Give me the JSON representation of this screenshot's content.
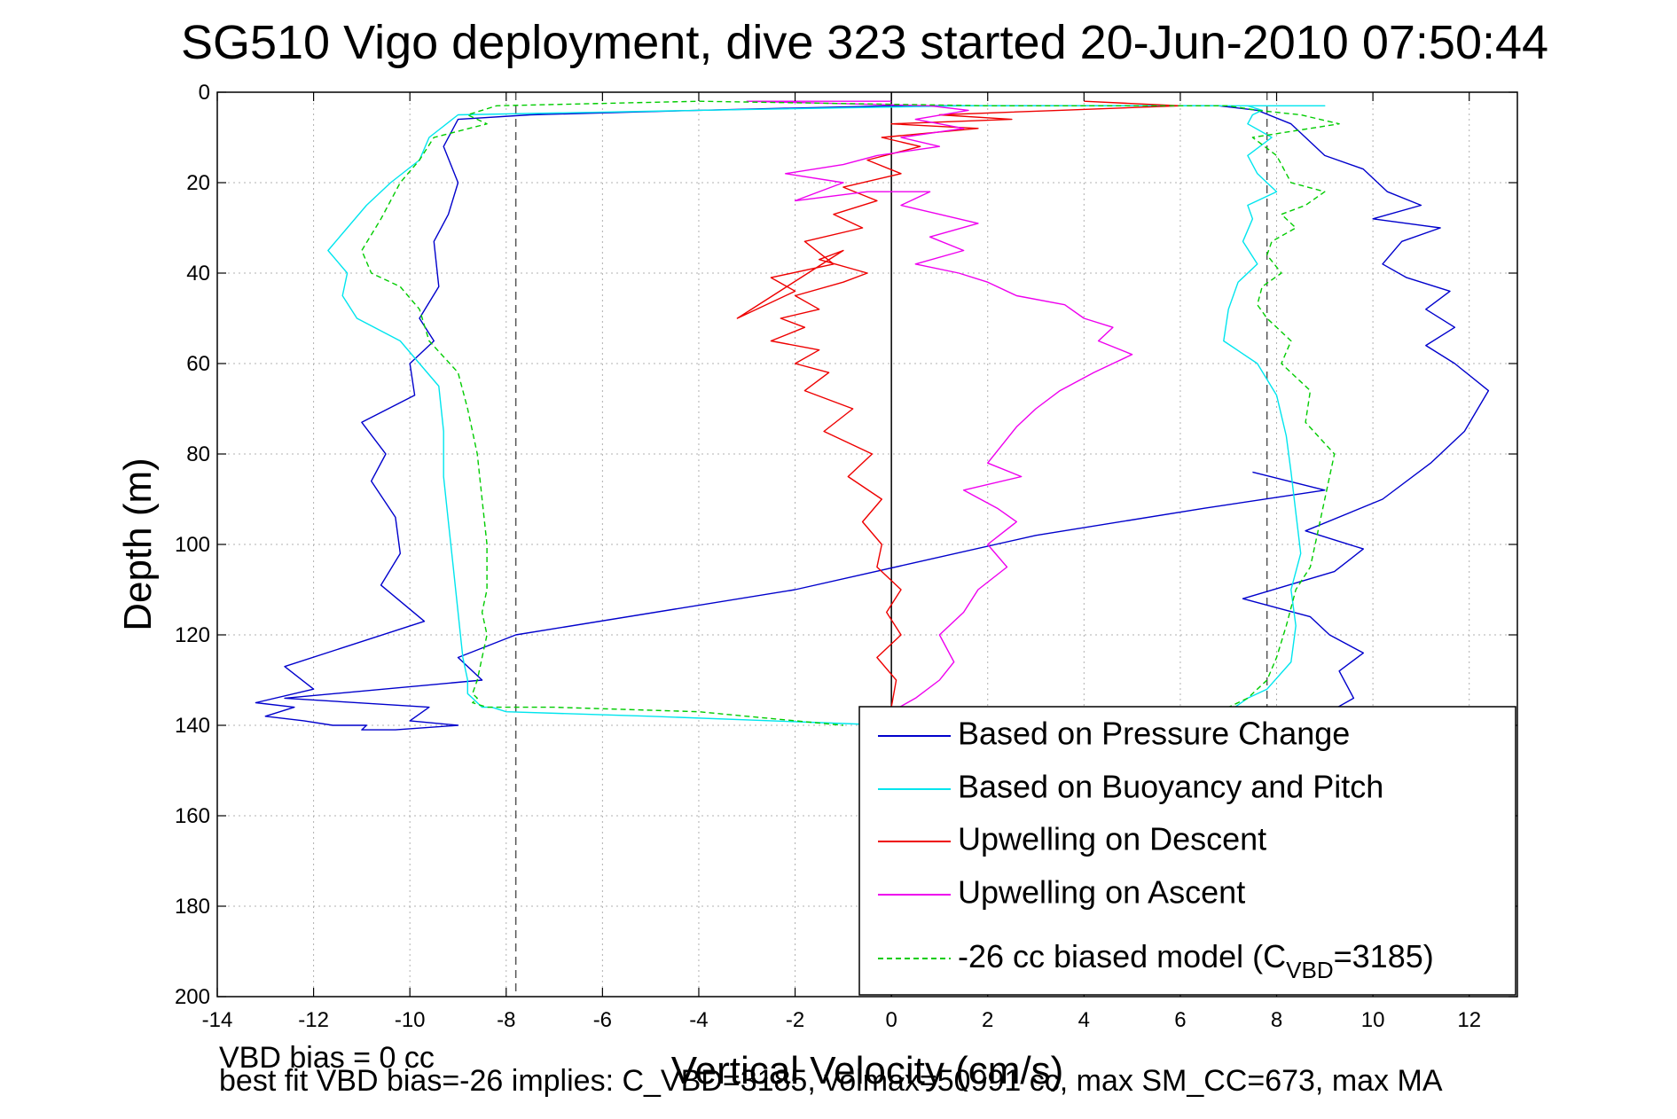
{
  "chart_data": {
    "type": "line",
    "title": "SG510 Vigo deployment, dive 323 started 20-Jun-2010 07:50:44",
    "xlabel": "Vertical Velocity (cm/s)",
    "ylabel": "Depth (m)",
    "xlim": [
      -14,
      13
    ],
    "ylim": [
      0,
      200
    ],
    "y_reversed": true,
    "xticks": [
      -14,
      -12,
      -10,
      -8,
      -6,
      -4,
      -2,
      0,
      2,
      4,
      6,
      8,
      10,
      12
    ],
    "yticks": [
      0,
      20,
      40,
      60,
      80,
      100,
      120,
      140,
      160,
      180,
      200
    ],
    "grid": true,
    "legend_position": "bottom-right",
    "reference_lines": [
      {
        "x": -7.8,
        "style": "dashed",
        "color": "#555555"
      },
      {
        "x": 0,
        "style": "solid",
        "color": "#000000"
      },
      {
        "x": 7.8,
        "style": "dashed",
        "color": "#555555"
      }
    ],
    "series": [
      {
        "name": "Based on Pressure Change",
        "color": "#0000cc",
        "style": "solid",
        "x": [
          7.5,
          9.1,
          9.6,
          9.3,
          9.8,
          9.1,
          8.7,
          7.3,
          9.2,
          9.8,
          8.6,
          10.2,
          11.2,
          11.9,
          12.4,
          11.7,
          11.1,
          11.7,
          11.1,
          11.6,
          10.7,
          10.2,
          10.6,
          11.4,
          10.0,
          11.0,
          10.3,
          9.8,
          9.0,
          8.6,
          8.3,
          7.6,
          6.8,
          6.6,
          3.0,
          0.0,
          -4.0,
          -7.5,
          -9.0,
          -9.3,
          -9.0,
          -9.2,
          -9.5,
          -9.4,
          -9.8,
          -9.5,
          -10.0,
          -9.9,
          -11.0,
          -10.5,
          -10.8,
          -10.3,
          -10.2,
          -10.6,
          -9.7,
          -12.6,
          -12.0,
          -13.2,
          -12.4,
          -13.0,
          -12.2,
          -11.6,
          -10.9,
          -11.0,
          -10.3,
          -9.0,
          -10.0,
          -9.6,
          -12.6,
          -8.5,
          -9.0,
          -7.8,
          -2.0,
          3.0,
          6.5,
          9.0,
          7.5
        ],
        "y": [
          140,
          137,
          134,
          128,
          124,
          120,
          116,
          112,
          106,
          101,
          97,
          90,
          82,
          75,
          66,
          60,
          56,
          52,
          48,
          44,
          41,
          38,
          33,
          30,
          28,
          25,
          22,
          17,
          14,
          10,
          7,
          4,
          3,
          3,
          3,
          3,
          4,
          5,
          6,
          12,
          20,
          27,
          33,
          43,
          50,
          55,
          60,
          67,
          73,
          80,
          86,
          94,
          102,
          109,
          117,
          127,
          132,
          135,
          136,
          138,
          139,
          140,
          140,
          141,
          141,
          140,
          139,
          136,
          134,
          130,
          125,
          120,
          110,
          98,
          92,
          88,
          84
        ]
      },
      {
        "name": "Based on Buoyancy and Pitch",
        "color": "#00e5ee",
        "style": "solid",
        "x": [
          7.0,
          7.4,
          7.8,
          8.3,
          8.4,
          8.3,
          8.5,
          8.4,
          8.3,
          8.2,
          8.0,
          7.6,
          6.9,
          7.0,
          7.2,
          7.6,
          7.3,
          7.5,
          7.4,
          8.0,
          7.6,
          7.4,
          7.9,
          7.4,
          7.5,
          7.7,
          7.4,
          7.6,
          7.4,
          7.9,
          8.4,
          9.0,
          9.0,
          1.5,
          -4.0,
          -9.0,
          -9.6,
          -9.8,
          -10.4,
          -10.9,
          -11.3,
          -11.7,
          -11.3,
          -11.4,
          -11.1,
          -10.2,
          -9.8,
          -9.4,
          -9.3,
          -9.3,
          -9.2,
          -9.1,
          -9.0,
          -8.9,
          -8.8,
          -8.8,
          -8.7,
          -8.6,
          -8.6,
          -8.5,
          -8.5,
          -8.4,
          -8.3,
          -8.0,
          -5.0,
          0.0,
          2.0
        ],
        "y": [
          137,
          134,
          132,
          126,
          118,
          110,
          102,
          93,
          84,
          76,
          67,
          60,
          55,
          48,
          42,
          38,
          33,
          28,
          25,
          22,
          18,
          14,
          10,
          7,
          5,
          4,
          3,
          3,
          3,
          3,
          3,
          3,
          3,
          3,
          4,
          5,
          10,
          15,
          20,
          25,
          30,
          35,
          40,
          45,
          50,
          55,
          60,
          65,
          75,
          85,
          95,
          105,
          115,
          125,
          130,
          133,
          134,
          135,
          135,
          136,
          136,
          136,
          136,
          137,
          138,
          140,
          141
        ]
      },
      {
        "name": "Upwelling on Descent",
        "color": "#ee0000",
        "style": "solid",
        "x": [
          0.0,
          0.1,
          -0.3,
          0.2,
          -0.1,
          0.2,
          -0.3,
          -0.2,
          -0.6,
          -0.2,
          -0.9,
          -0.4,
          -1.4,
          -0.8,
          -1.8,
          -1.3,
          -2.0,
          -1.5,
          -2.5,
          -1.8,
          -2.3,
          -1.5,
          -2.0,
          -1.0,
          -0.5,
          -1.5,
          -1.0,
          -3.2,
          -2.0,
          -2.5,
          -1.2,
          -1.8,
          -0.6,
          -1.2,
          -0.3,
          -1.0,
          0.2,
          -0.5,
          0.6,
          -0.2,
          1.8,
          0.0,
          2.5,
          1.0,
          3.5,
          6.0,
          4.0
        ],
        "y": [
          136,
          130,
          125,
          120,
          115,
          110,
          105,
          100,
          95,
          90,
          85,
          80,
          75,
          70,
          66,
          62,
          60,
          57,
          55,
          52,
          50,
          48,
          45,
          42,
          40,
          37,
          35,
          50,
          44,
          41,
          38,
          33,
          30,
          27,
          24,
          21,
          18,
          15,
          12,
          10,
          8,
          7,
          6,
          5,
          4,
          3,
          2
        ]
      },
      {
        "name": "Upwelling on Ascent",
        "color": "#ee00ee",
        "style": "solid",
        "x": [
          0.0,
          0.5,
          1.0,
          1.3,
          1.0,
          1.5,
          1.8,
          2.4,
          2.0,
          2.6,
          2.2,
          1.5,
          2.7,
          2.0,
          2.3,
          2.6,
          3.0,
          3.5,
          4.2,
          4.6,
          5.0,
          4.3,
          4.6,
          4.0,
          3.6,
          2.6,
          2.0,
          1.4,
          0.5,
          1.5,
          0.8,
          1.8,
          1.0,
          0.2,
          0.8,
          -0.5,
          -2.0,
          -1.0,
          -2.2,
          -1.0,
          -0.3,
          1.0,
          0.2,
          1.5,
          0.5,
          1.6,
          0.8,
          -3.0,
          0.0
        ],
        "y": [
          137,
          134,
          130,
          126,
          120,
          115,
          110,
          105,
          100,
          95,
          92,
          88,
          85,
          82,
          78,
          74,
          70,
          66,
          62,
          60,
          58,
          55,
          52,
          50,
          47,
          45,
          42,
          40,
          38,
          35,
          32,
          29,
          27,
          25,
          22,
          22,
          24,
          20,
          18,
          16,
          14,
          12,
          10,
          8,
          6,
          4,
          3,
          2,
          2
        ]
      },
      {
        "name": "-26 cc biased model (C_VBD=3185)",
        "color": "#00cc00",
        "style": "dashed",
        "x": [
          6.8,
          7.4,
          7.8,
          8.0,
          8.2,
          8.4,
          8.7,
          8.8,
          9.0,
          9.2,
          8.6,
          8.7,
          8.1,
          8.3,
          7.8,
          7.6,
          7.7,
          8.1,
          7.8,
          7.9,
          8.4,
          8.1,
          8.6,
          9.0,
          8.3,
          8.0,
          7.5,
          9.3,
          8.5,
          7.6,
          7.0,
          2.0,
          -4.0,
          -8.2,
          -8.8,
          -8.4,
          -9.5,
          -9.8,
          -10.2,
          -10.6,
          -11.0,
          -10.8,
          -10.2,
          -9.8,
          -9.6,
          -9.0,
          -8.8,
          -8.6,
          -8.5,
          -8.4,
          -8.4,
          -8.5,
          -8.4,
          -8.5,
          -8.6,
          -8.7,
          -8.6,
          -8.7,
          -8.4,
          -7.0,
          -4.0,
          -1.0
        ],
        "y": [
          137,
          134,
          130,
          125,
          118,
          110,
          105,
          100,
          90,
          80,
          73,
          66,
          60,
          55,
          50,
          47,
          43,
          40,
          36,
          33,
          30,
          27,
          25,
          22,
          20,
          14,
          10,
          7,
          5,
          4,
          3,
          3,
          2,
          3,
          5,
          7,
          10,
          15,
          20,
          28,
          35,
          40,
          43,
          48,
          55,
          62,
          70,
          80,
          90,
          100,
          110,
          115,
          120,
          125,
          130,
          133,
          134,
          135,
          136,
          136,
          137,
          140
        ]
      }
    ]
  },
  "legend": {
    "entries": [
      {
        "label": "Based on Pressure Change",
        "color": "#0000cc",
        "style": "solid"
      },
      {
        "label": "Based on Buoyancy and Pitch",
        "color": "#00e5ee",
        "style": "solid"
      },
      {
        "label": "Upwelling on Descent",
        "color": "#ee0000",
        "style": "solid"
      },
      {
        "label": "Upwelling on Ascent",
        "color": "#ee00ee",
        "style": "solid"
      }
    ],
    "last_entry": {
      "prefix": "-26 cc biased model (C",
      "subscript": "VBD",
      "suffix": "=3185)",
      "color": "#00cc00",
      "style": "dashed"
    }
  },
  "footer": {
    "line1": "VBD bias = 0 cc",
    "line2": "best fit VBD bias=-26 implies: C_VBD=3185, volmax=50991 cc, max SM_CC=673, max MA"
  }
}
